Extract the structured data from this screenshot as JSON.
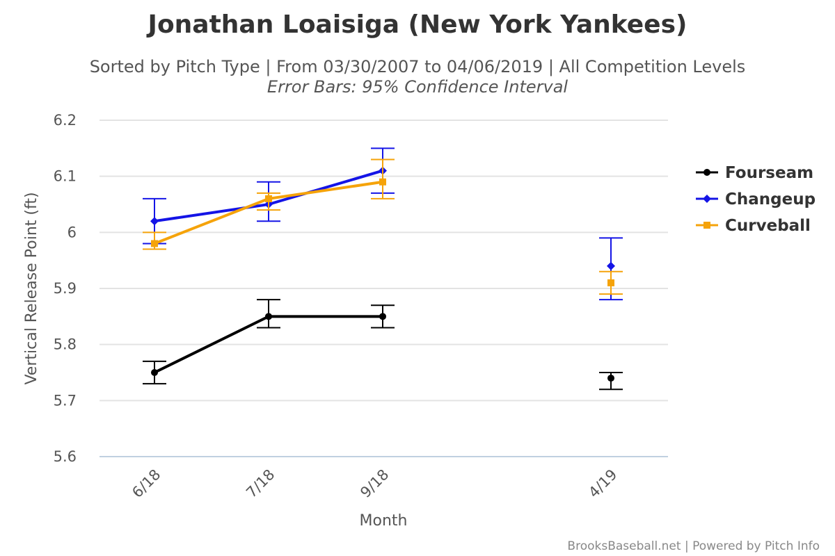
{
  "chart_data": {
    "type": "line",
    "title": "Jonathan Loaisiga (New York Yankees)",
    "subtitle": "Sorted by Pitch Type | From 03/30/2007 to 04/06/2019 | All Competition Levels",
    "subtitle2": "Error Bars: 95% Confidence Interval",
    "xlabel": "Month",
    "ylabel": "Vertical Release Point (ft)",
    "categories": [
      "6/18",
      "7/18",
      "9/18",
      "4/19"
    ],
    "category_positions": [
      0,
      1,
      2,
      4
    ],
    "ylim": [
      5.6,
      6.2
    ],
    "yticks": [
      "5.6",
      "5.7",
      "5.8",
      "5.9",
      "6",
      "6.1",
      "6.2"
    ],
    "grid": true,
    "legend_position": "right",
    "series": [
      {
        "name": "Fourseam",
        "color": "#000000",
        "marker": "circle",
        "values": [
          5.75,
          5.85,
          5.85,
          5.74
        ],
        "error_low": [
          5.73,
          5.83,
          5.83,
          5.72
        ],
        "error_high": [
          5.77,
          5.88,
          5.87,
          5.75
        ],
        "connected_through": 2
      },
      {
        "name": "Changeup",
        "color": "#1414e6",
        "marker": "diamond",
        "values": [
          6.02,
          6.05,
          6.11,
          5.94
        ],
        "error_low": [
          5.98,
          6.02,
          6.07,
          5.88
        ],
        "error_high": [
          6.06,
          6.09,
          6.15,
          5.99
        ],
        "connected_through": 2
      },
      {
        "name": "Curveball",
        "color": "#f5a30a",
        "marker": "square",
        "values": [
          5.98,
          6.06,
          6.09,
          5.91
        ],
        "error_low": [
          5.97,
          6.04,
          6.06,
          5.89
        ],
        "error_high": [
          6.0,
          6.07,
          6.13,
          5.93
        ],
        "connected_through": 2
      }
    ],
    "credits": "BrooksBaseball.net | Powered by Pitch Info"
  }
}
